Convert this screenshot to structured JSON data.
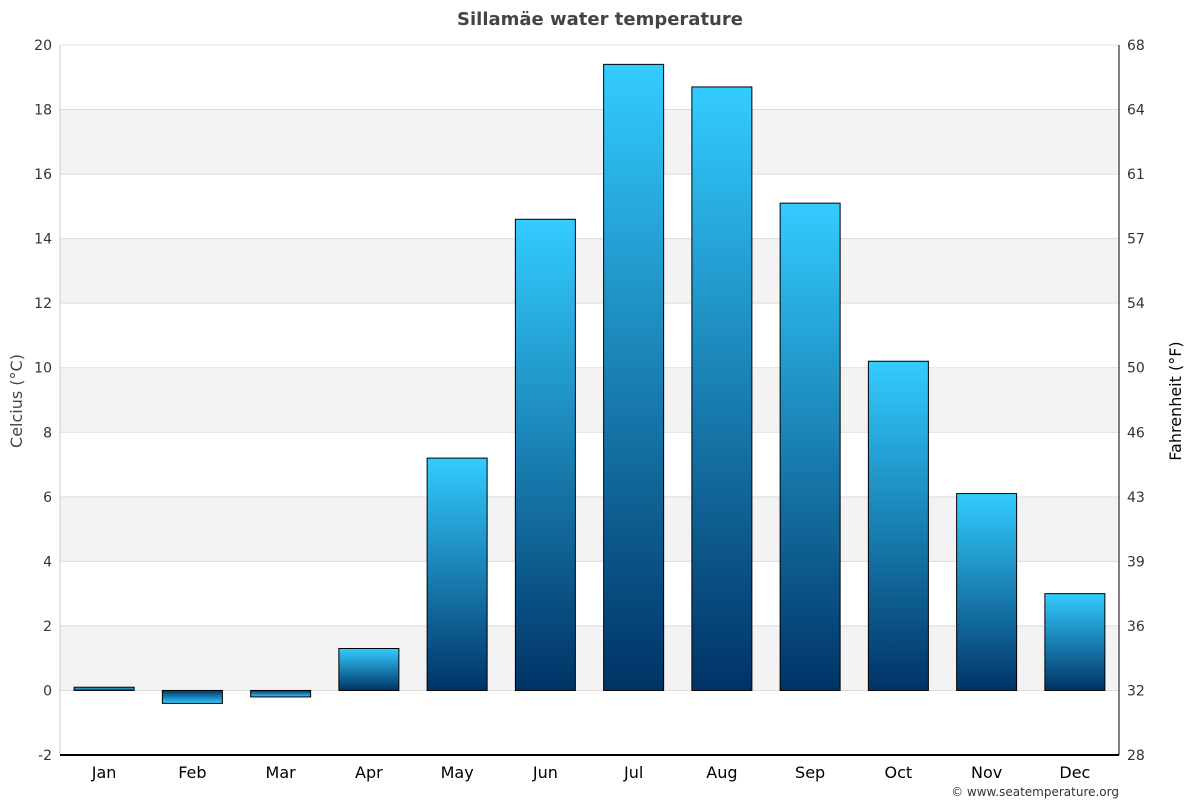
{
  "chart_data": {
    "type": "bar",
    "title": "Sillamäe water temperature",
    "ylabel": "Celcius (°C)",
    "y2label": "Fahrenheit (°F)",
    "categories": [
      "Jan",
      "Feb",
      "Mar",
      "Apr",
      "May",
      "Jun",
      "Jul",
      "Aug",
      "Sep",
      "Oct",
      "Nov",
      "Dec"
    ],
    "values": [
      0.1,
      -0.4,
      -0.2,
      1.3,
      7.2,
      14.6,
      19.4,
      18.7,
      15.1,
      10.2,
      6.1,
      3.0
    ],
    "ylim": [
      -2,
      20
    ],
    "yticks": [
      -2,
      0,
      2,
      4,
      6,
      8,
      10,
      12,
      14,
      16,
      18,
      20
    ],
    "y2ticks": [
      "28",
      "32",
      "36",
      "39",
      "43",
      "46",
      "50",
      "54",
      "57",
      "61",
      "64",
      "68"
    ],
    "grid": true,
    "colors": {
      "bar_top": "#33ccff",
      "bar_bottom": "#003366",
      "band": "#f3f3f3"
    }
  },
  "footer": {
    "credit": "© www.seatemperature.org"
  }
}
